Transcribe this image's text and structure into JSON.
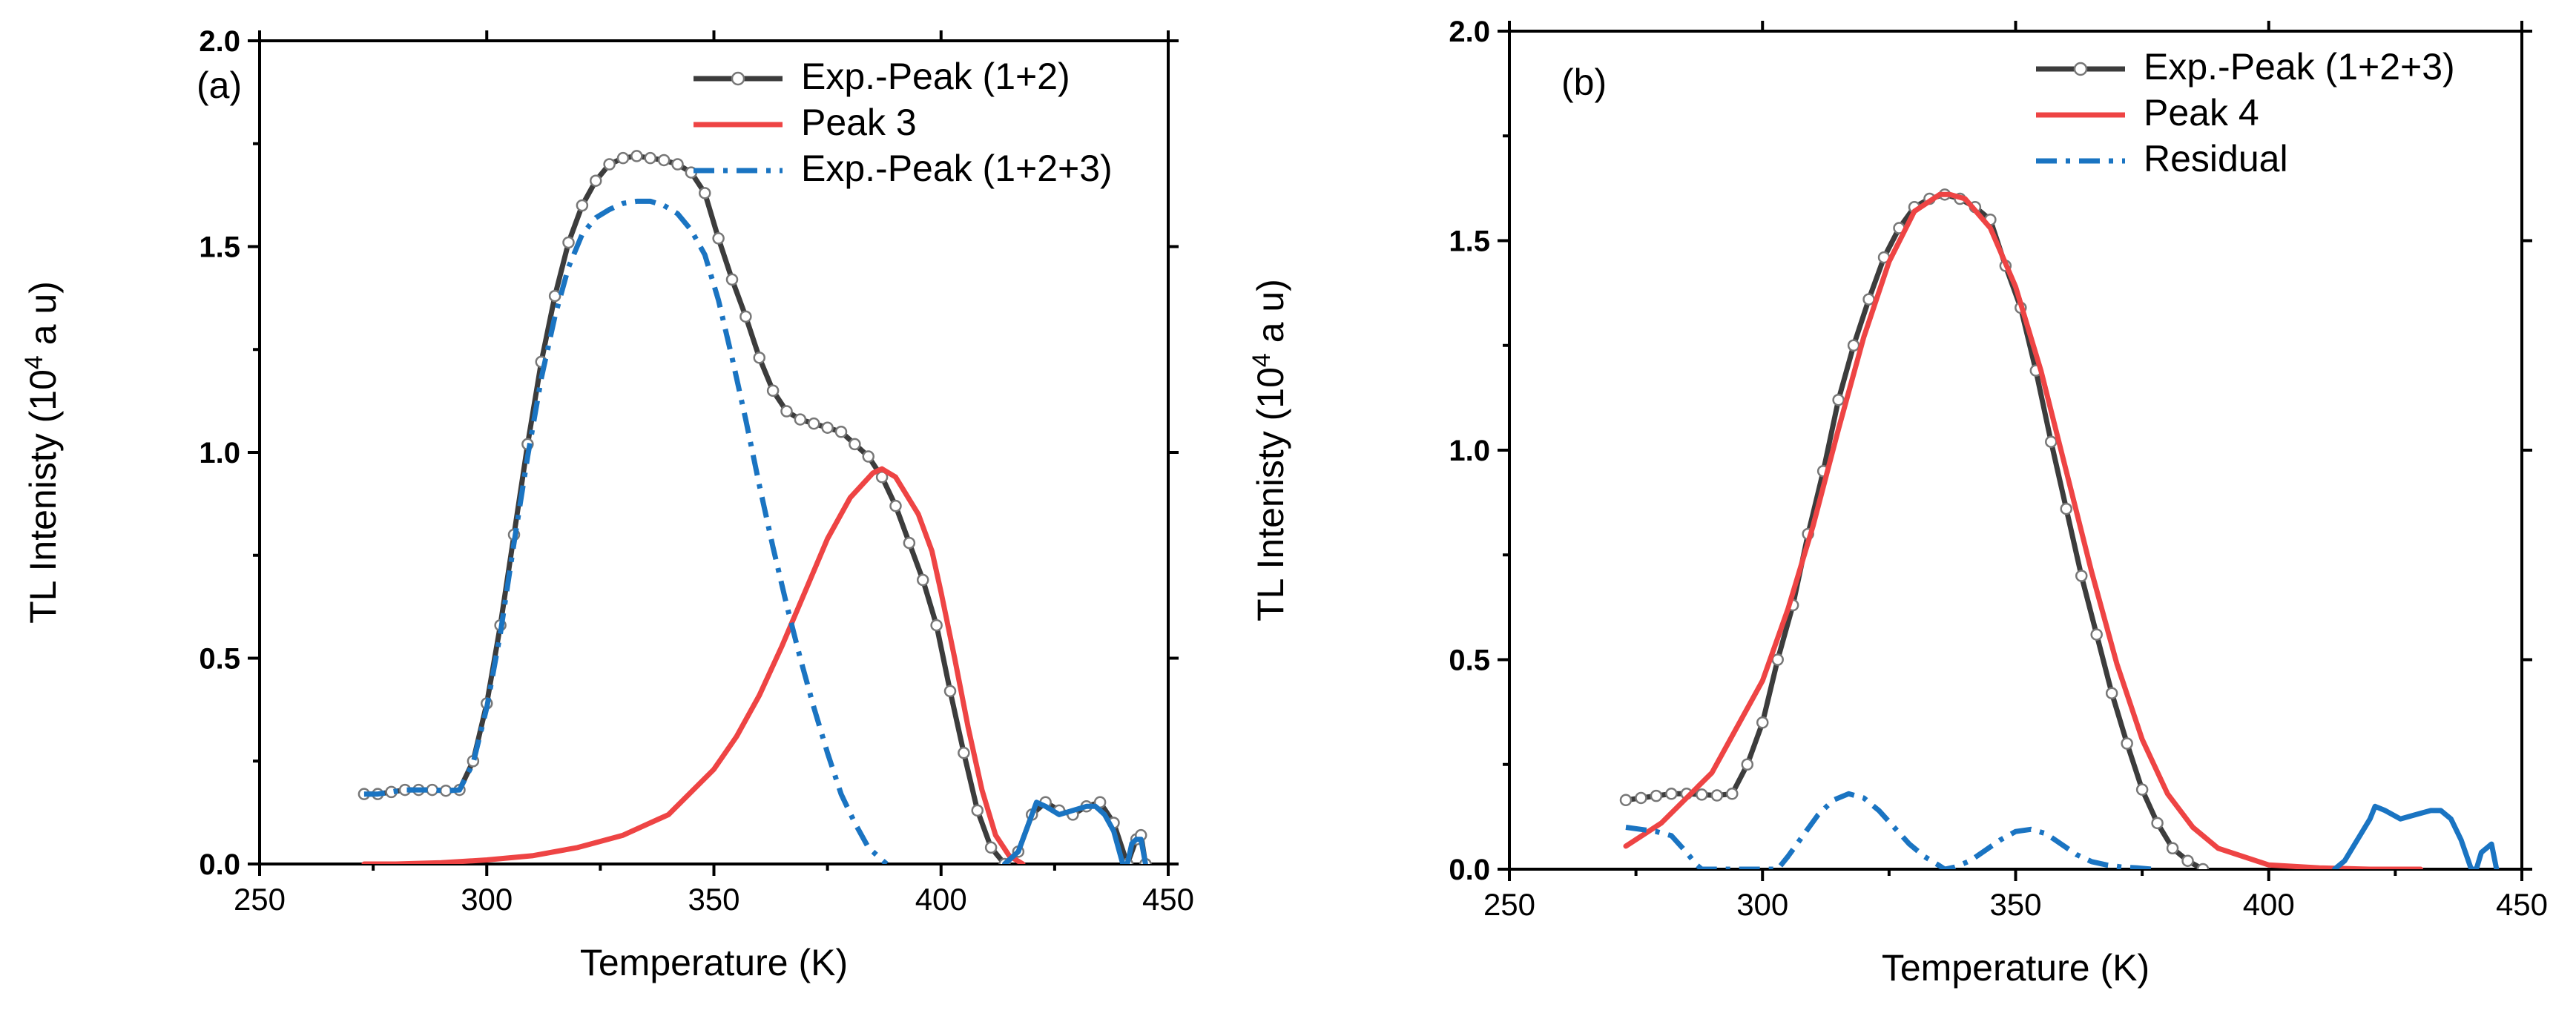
{
  "chart_data": [
    {
      "type": "line",
      "panel_label": "(a)",
      "xlabel": "Temperature (K)",
      "ylabel_main": "TL Intenisty (10",
      "ylabel_sup": "4",
      "ylabel_tail": " a u)",
      "xlim": [
        250,
        450
      ],
      "ylim": [
        0,
        2.0
      ],
      "x_ticks": [
        250,
        300,
        350,
        400,
        450
      ],
      "x_tick_labels": [
        "250",
        "300",
        "350",
        "400",
        "450"
      ],
      "y_ticks": [
        0,
        0.5,
        1.0,
        1.5,
        2.0
      ],
      "y_tick_labels": [
        "0.0",
        "0.5",
        "1.0",
        "1.5",
        "2.0"
      ],
      "grid": false,
      "legend_position": "top-right",
      "series": [
        {
          "name": "Exp.-Peak (1+2)",
          "color": "#3c3c3c",
          "style": "solid-with-circles",
          "x": [
            273,
            276,
            279,
            282,
            285,
            288,
            291,
            294,
            297,
            300,
            303,
            306,
            309,
            312,
            315,
            318,
            321,
            324,
            327,
            330,
            333,
            336,
            339,
            342,
            345,
            348,
            351,
            354,
            357,
            360,
            363,
            366,
            369,
            372,
            375,
            378,
            381,
            384,
            387,
            390,
            393,
            396,
            399,
            402,
            405,
            408,
            411,
            414,
            417,
            420,
            423,
            426,
            429,
            432,
            435,
            438,
            441,
            443,
            444,
            445
          ],
          "y": [
            0.17,
            0.17,
            0.175,
            0.18,
            0.18,
            0.18,
            0.178,
            0.18,
            0.25,
            0.39,
            0.58,
            0.8,
            1.02,
            1.22,
            1.38,
            1.51,
            1.6,
            1.66,
            1.7,
            1.715,
            1.72,
            1.715,
            1.71,
            1.7,
            1.68,
            1.63,
            1.52,
            1.42,
            1.33,
            1.23,
            1.15,
            1.1,
            1.08,
            1.07,
            1.06,
            1.05,
            1.02,
            0.99,
            0.94,
            0.87,
            0.78,
            0.69,
            0.58,
            0.42,
            0.27,
            0.13,
            0.04,
            0.0,
            0.03,
            0.12,
            0.15,
            0.13,
            0.12,
            0.14,
            0.15,
            0.1,
            0.0,
            0.06,
            0.07,
            0.0
          ]
        },
        {
          "name": "Peak 3",
          "color": "#ee4444",
          "style": "solid",
          "x": [
            273,
            280,
            290,
            300,
            310,
            320,
            330,
            340,
            350,
            355,
            360,
            365,
            370,
            375,
            380,
            385,
            387,
            390,
            395,
            398,
            400,
            403,
            406,
            409,
            412,
            415,
            418
          ],
          "y": [
            0.0,
            0.0,
            0.003,
            0.01,
            0.02,
            0.04,
            0.07,
            0.12,
            0.23,
            0.31,
            0.41,
            0.53,
            0.66,
            0.79,
            0.89,
            0.95,
            0.96,
            0.94,
            0.85,
            0.76,
            0.66,
            0.5,
            0.33,
            0.18,
            0.07,
            0.02,
            0.0
          ]
        },
        {
          "name": "Exp.-Peak (1+2+3)",
          "color": "#1a74c2",
          "style": "dashdot",
          "x": [
            273,
            276,
            279,
            282,
            285,
            288,
            291,
            294,
            297,
            300,
            303,
            306,
            309,
            312,
            315,
            318,
            321,
            324,
            327,
            330,
            333,
            336,
            339,
            342,
            345,
            348,
            351,
            354,
            357,
            360,
            363,
            366,
            369,
            372,
            375,
            378,
            381,
            384,
            387,
            388
          ],
          "y": [
            0.17,
            0.17,
            0.175,
            0.18,
            0.18,
            0.18,
            0.178,
            0.18,
            0.245,
            0.38,
            0.56,
            0.78,
            0.99,
            1.18,
            1.33,
            1.45,
            1.53,
            1.57,
            1.59,
            1.605,
            1.61,
            1.61,
            1.6,
            1.58,
            1.54,
            1.48,
            1.37,
            1.23,
            1.08,
            0.92,
            0.77,
            0.63,
            0.5,
            0.38,
            0.27,
            0.17,
            0.1,
            0.04,
            0.01,
            0.0
          ]
        },
        {
          "name": "",
          "color": "#1a74c2",
          "style": "solid",
          "x": [
            414,
            417,
            420,
            421,
            423,
            426,
            429,
            432,
            434,
            436,
            438,
            440,
            441,
            442,
            443,
            444,
            445
          ],
          "y": [
            0.0,
            0.03,
            0.12,
            0.15,
            0.14,
            0.12,
            0.13,
            0.14,
            0.14,
            0.12,
            0.08,
            0.0,
            0.0,
            0.05,
            0.06,
            0.06,
            0.0
          ]
        }
      ]
    },
    {
      "type": "line",
      "panel_label": "(b)",
      "xlabel": "Temperature (K)",
      "ylabel_main": "TL Intenisty (10",
      "ylabel_sup": "4",
      "ylabel_tail": " a u)",
      "xlim": [
        250,
        450
      ],
      "ylim": [
        0,
        2.0
      ],
      "x_ticks": [
        250,
        300,
        350,
        400,
        450
      ],
      "x_tick_labels": [
        "250",
        "300",
        "350",
        "400",
        "450"
      ],
      "y_ticks": [
        0,
        0.5,
        1.0,
        1.5,
        2.0
      ],
      "y_tick_labels": [
        "0.0",
        "0.5",
        "1.0",
        "1.5",
        "2.0"
      ],
      "grid": false,
      "legend_position": "top-right",
      "series": [
        {
          "name": "Exp.-Peak (1+2+3)",
          "color": "#3c3c3c",
          "style": "solid-with-circles",
          "x": [
            273,
            276,
            279,
            282,
            285,
            288,
            291,
            294,
            297,
            300,
            303,
            306,
            309,
            312,
            315,
            318,
            321,
            324,
            327,
            330,
            333,
            336,
            339,
            342,
            345,
            348,
            351,
            354,
            357,
            360,
            363,
            366,
            369,
            372,
            375,
            378,
            381,
            384,
            387
          ],
          "y": [
            0.165,
            0.17,
            0.175,
            0.18,
            0.18,
            0.178,
            0.176,
            0.18,
            0.25,
            0.35,
            0.5,
            0.63,
            0.8,
            0.95,
            1.12,
            1.25,
            1.36,
            1.46,
            1.53,
            1.58,
            1.6,
            1.61,
            1.6,
            1.58,
            1.55,
            1.44,
            1.34,
            1.19,
            1.02,
            0.86,
            0.7,
            0.56,
            0.42,
            0.3,
            0.19,
            0.11,
            0.05,
            0.02,
            0.0
          ]
        },
        {
          "name": "Peak 4",
          "color": "#ee4444",
          "style": "solid",
          "x": [
            273,
            280,
            290,
            300,
            305,
            310,
            315,
            320,
            325,
            330,
            335,
            337,
            340,
            345,
            350,
            355,
            360,
            365,
            370,
            375,
            380,
            385,
            390,
            400,
            410,
            420,
            430
          ],
          "y": [
            0.055,
            0.11,
            0.23,
            0.45,
            0.62,
            0.82,
            1.05,
            1.27,
            1.45,
            1.57,
            1.61,
            1.61,
            1.6,
            1.53,
            1.39,
            1.19,
            0.95,
            0.71,
            0.49,
            0.31,
            0.18,
            0.1,
            0.05,
            0.01,
            0.003,
            0.0,
            0.0
          ]
        },
        {
          "name": "Residual",
          "color": "#1a74c2",
          "style": "dashdot",
          "x": [
            273,
            276,
            279,
            282,
            285,
            287,
            288,
            303,
            305,
            308,
            311,
            314,
            317,
            320,
            323,
            326,
            329,
            332,
            335,
            336,
            338,
            341,
            344,
            347,
            350,
            353,
            356,
            359,
            362,
            365,
            368,
            371,
            374,
            377
          ],
          "y": [
            0.1,
            0.095,
            0.09,
            0.08,
            0.04,
            0.01,
            0.0,
            0.0,
            0.03,
            0.08,
            0.13,
            0.165,
            0.18,
            0.17,
            0.14,
            0.1,
            0.06,
            0.03,
            0.008,
            0.0,
            0.005,
            0.02,
            0.045,
            0.07,
            0.09,
            0.095,
            0.085,
            0.06,
            0.035,
            0.018,
            0.01,
            0.005,
            0.003,
            0.0
          ]
        },
        {
          "name": "",
          "color": "#1a74c2",
          "style": "solid",
          "x": [
            413,
            415,
            418,
            420,
            421,
            423,
            426,
            429,
            432,
            434,
            436,
            438,
            440,
            441,
            442,
            443,
            444,
            445
          ],
          "y": [
            0.0,
            0.02,
            0.08,
            0.12,
            0.15,
            0.14,
            0.12,
            0.13,
            0.14,
            0.14,
            0.12,
            0.07,
            0.0,
            0.0,
            0.04,
            0.05,
            0.06,
            0.0
          ]
        }
      ]
    }
  ]
}
